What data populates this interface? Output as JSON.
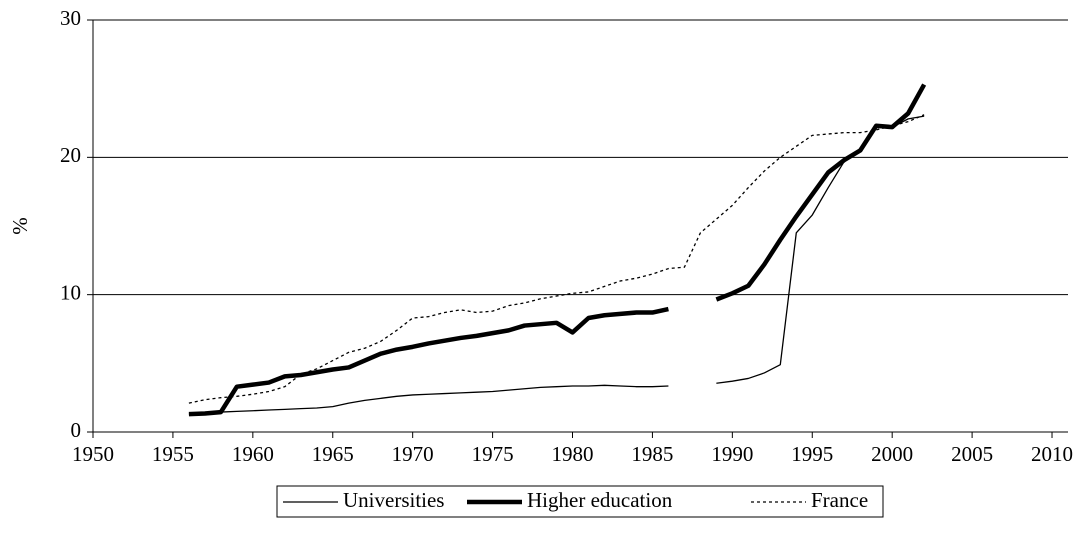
{
  "chart_data": {
    "type": "line",
    "y_label": "%",
    "x": [
      1956,
      1957,
      1958,
      1959,
      1960,
      1961,
      1962,
      1963,
      1964,
      1965,
      1966,
      1967,
      1968,
      1969,
      1970,
      1971,
      1972,
      1973,
      1974,
      1975,
      1976,
      1977,
      1978,
      1979,
      1980,
      1981,
      1982,
      1983,
      1984,
      1985,
      1986,
      1987,
      1988,
      1989,
      1990,
      1991,
      1992,
      1993,
      1994,
      1995,
      1996,
      1997,
      1998,
      1999,
      2000,
      2001,
      2002
    ],
    "series": [
      {
        "name": "Universities",
        "color": "#000000",
        "line_width": 1.3,
        "dashed": false,
        "values": [
          1.3,
          1.35,
          1.45,
          1.5,
          1.55,
          1.6,
          1.65,
          1.7,
          1.75,
          1.85,
          2.1,
          2.3,
          2.45,
          2.6,
          2.7,
          2.75,
          2.8,
          2.85,
          2.9,
          2.95,
          3.05,
          3.15,
          3.25,
          3.3,
          3.35,
          3.35,
          3.4,
          3.35,
          3.3,
          3.3,
          3.35,
          null,
          null,
          3.55,
          3.7,
          3.9,
          4.3,
          4.9,
          14.5,
          15.8,
          17.8,
          19.7,
          20.5,
          22.3,
          22.2,
          22.8,
          23.0
        ]
      },
      {
        "name": "Higher education",
        "color": "#000000",
        "line_width": 4.5,
        "dashed": false,
        "values": [
          1.3,
          1.35,
          1.45,
          3.3,
          3.45,
          3.6,
          4.05,
          4.15,
          4.35,
          4.55,
          4.7,
          5.2,
          5.7,
          6.0,
          6.2,
          6.45,
          6.65,
          6.85,
          7.0,
          7.2,
          7.4,
          7.75,
          7.85,
          7.95,
          7.25,
          8.3,
          8.5,
          8.6,
          8.7,
          8.7,
          8.95,
          null,
          null,
          9.65,
          10.1,
          10.65,
          12.2,
          14.0,
          15.7,
          17.3,
          18.9,
          19.8,
          20.5,
          22.3,
          22.2,
          23.2,
          25.3
        ]
      },
      {
        "name": "France",
        "color": "#000000",
        "line_width": 1.3,
        "dashed": true,
        "values": [
          2.1,
          2.35,
          2.5,
          2.6,
          2.75,
          2.95,
          3.3,
          4.2,
          4.6,
          5.2,
          5.8,
          6.1,
          6.6,
          7.4,
          8.3,
          8.4,
          8.7,
          8.9,
          8.7,
          8.8,
          9.2,
          9.4,
          9.7,
          9.9,
          10.1,
          10.2,
          10.6,
          11.0,
          11.2,
          11.5,
          11.9,
          12.0,
          14.5,
          15.5,
          16.5,
          17.8,
          19.0,
          20.0,
          20.8,
          21.6,
          21.7,
          21.8,
          21.8,
          22.0,
          22.3,
          22.6,
          23.1
        ]
      }
    ],
    "xlim": [
      1950,
      2011
    ],
    "xticks": [
      1950,
      1955,
      1960,
      1965,
      1970,
      1975,
      1980,
      1985,
      1990,
      1995,
      2000,
      2005,
      2010
    ],
    "ylim": [
      0,
      30
    ],
    "yticks": [
      0,
      10,
      20,
      30
    ],
    "grid": true,
    "legend": "bottom"
  }
}
